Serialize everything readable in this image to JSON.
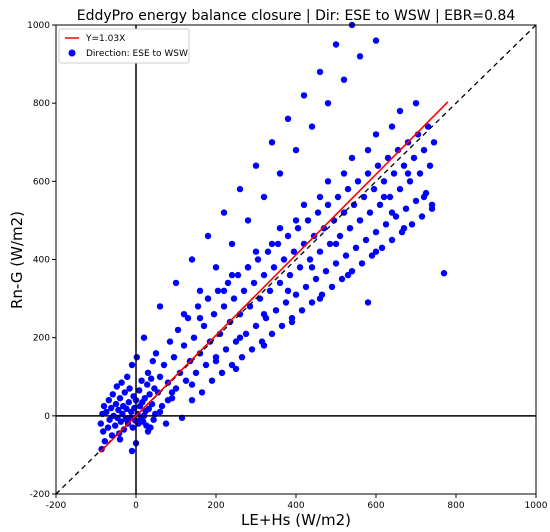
{
  "chart_data": {
    "type": "scatter",
    "title": "EddyPro energy balance closure | Dir: ESE to WSW | EBR=0.84",
    "xlabel": "LE+Hs (W/m2)",
    "ylabel": "Rn-G (W/m2)",
    "xlim": [
      -200,
      1000
    ],
    "ylim": [
      -200,
      1000
    ],
    "xticks": [
      -200,
      0,
      200,
      400,
      600,
      800,
      1000
    ],
    "yticks": [
      -200,
      0,
      200,
      400,
      600,
      800,
      1000
    ],
    "grid": false,
    "legend_position": "top-left",
    "reference_lines": [
      {
        "kind": "vertical",
        "x": 0,
        "color": "#000000"
      },
      {
        "kind": "horizontal",
        "y": 0,
        "color": "#000000"
      },
      {
        "kind": "one-to-one",
        "style": "dashed",
        "color": "#000000"
      }
    ],
    "fit": {
      "label": "Y=1.03X",
      "slope": 1.03,
      "x_range": [
        -90,
        780
      ],
      "color": "#ff0000"
    },
    "series": [
      {
        "name": "Direction: ESE to WSW",
        "color": "#0000ff",
        "points": [
          [
            -86,
            -85
          ],
          [
            -82,
            -40
          ],
          [
            -88,
            -20
          ],
          [
            -84,
            5
          ],
          [
            -80,
            25
          ],
          [
            -78,
            -65
          ],
          [
            -74,
            10
          ],
          [
            -70,
            -30
          ],
          [
            -68,
            40
          ],
          [
            -66,
            -10
          ],
          [
            -62,
            20
          ],
          [
            -60,
            -50
          ],
          [
            -58,
            55
          ],
          [
            -56,
            0
          ],
          [
            -52,
            -25
          ],
          [
            -50,
            30
          ],
          [
            -48,
            75
          ],
          [
            -46,
            -5
          ],
          [
            -44,
            15
          ],
          [
            -42,
            -45
          ],
          [
            -40,
            45
          ],
          [
            -38,
            -15
          ],
          [
            -36,
            85
          ],
          [
            -34,
            5
          ],
          [
            -32,
            25
          ],
          [
            -30,
            -35
          ],
          [
            -28,
            60
          ],
          [
            -26,
            -8
          ],
          [
            -24,
            18
          ],
          [
            -22,
            100
          ],
          [
            -20,
            -20
          ],
          [
            -18,
            35
          ],
          [
            -16,
            70
          ],
          [
            -14,
            -5
          ],
          [
            -12,
            10
          ],
          [
            -10,
            130
          ],
          [
            -8,
            -30
          ],
          [
            -6,
            50
          ],
          [
            -4,
            20
          ],
          [
            -2,
            -12
          ],
          [
            0,
            40
          ],
          [
            2,
            150
          ],
          [
            4,
            5
          ],
          [
            6,
            -20
          ],
          [
            8,
            65
          ],
          [
            10,
            25
          ],
          [
            12,
            -8
          ],
          [
            14,
            90
          ],
          [
            16,
            35
          ],
          [
            18,
            -15
          ],
          [
            20,
            200
          ],
          [
            22,
            45
          ],
          [
            24,
            12
          ],
          [
            26,
            -25
          ],
          [
            28,
            80
          ],
          [
            30,
            110
          ],
          [
            32,
            18
          ],
          [
            34,
            55
          ],
          [
            36,
            -30
          ],
          [
            38,
            95
          ],
          [
            40,
            30
          ],
          [
            42,
            140
          ],
          [
            44,
            -10
          ],
          [
            46,
            70
          ],
          [
            48,
            5
          ],
          [
            50,
            160
          ],
          [
            55,
            60
          ],
          [
            60,
            100
          ],
          [
            65,
            25
          ],
          [
            70,
            130
          ],
          [
            75,
            -20
          ],
          [
            80,
            85
          ],
          [
            85,
            190
          ],
          [
            90,
            45
          ],
          [
            95,
            150
          ],
          [
            100,
            70
          ],
          [
            105,
            220
          ],
          [
            110,
            110
          ],
          [
            115,
            -5
          ],
          [
            120,
            180
          ],
          [
            125,
            90
          ],
          [
            130,
            250
          ],
          [
            135,
            140
          ],
          [
            140,
            40
          ],
          [
            145,
            200
          ],
          [
            150,
            110
          ],
          [
            155,
            280
          ],
          [
            160,
            160
          ],
          [
            165,
            60
          ],
          [
            170,
            230
          ],
          [
            175,
            130
          ],
          [
            180,
            300
          ],
          [
            185,
            190
          ],
          [
            190,
            90
          ],
          [
            195,
            260
          ],
          [
            200,
            150
          ],
          [
            205,
            320
          ],
          [
            210,
            210
          ],
          [
            215,
            110
          ],
          [
            220,
            280
          ],
          [
            225,
            170
          ],
          [
            230,
            340
          ],
          [
            235,
            240
          ],
          [
            240,
            130
          ],
          [
            245,
            300
          ],
          [
            250,
            190
          ],
          [
            255,
            360
          ],
          [
            260,
            260
          ],
          [
            265,
            150
          ],
          [
            270,
            320
          ],
          [
            275,
            210
          ],
          [
            280,
            380
          ],
          [
            285,
            280
          ],
          [
            290,
            170
          ],
          [
            295,
            340
          ],
          [
            300,
            230
          ],
          [
            305,
            400
          ],
          [
            310,
            300
          ],
          [
            315,
            190
          ],
          [
            320,
            360
          ],
          [
            325,
            250
          ],
          [
            330,
            420
          ],
          [
            335,
            320
          ],
          [
            340,
            210
          ],
          [
            345,
            380
          ],
          [
            350,
            270
          ],
          [
            355,
            440
          ],
          [
            360,
            340
          ],
          [
            365,
            230
          ],
          [
            370,
            400
          ],
          [
            375,
            290
          ],
          [
            380,
            460
          ],
          [
            385,
            360
          ],
          [
            390,
            250
          ],
          [
            395,
            420
          ],
          [
            400,
            310
          ],
          [
            405,
            480
          ],
          [
            410,
            380
          ],
          [
            415,
            270
          ],
          [
            420,
            440
          ],
          [
            425,
            330
          ],
          [
            430,
            500
          ],
          [
            435,
            400
          ],
          [
            440,
            290
          ],
          [
            445,
            460
          ],
          [
            450,
            350
          ],
          [
            455,
            520
          ],
          [
            460,
            420
          ],
          [
            465,
            310
          ],
          [
            470,
            480
          ],
          [
            475,
            370
          ],
          [
            480,
            540
          ],
          [
            485,
            440
          ],
          [
            490,
            330
          ],
          [
            495,
            500
          ],
          [
            500,
            390
          ],
          [
            505,
            560
          ],
          [
            510,
            460
          ],
          [
            515,
            350
          ],
          [
            520,
            520
          ],
          [
            525,
            410
          ],
          [
            530,
            580
          ],
          [
            535,
            480
          ],
          [
            540,
            370
          ],
          [
            545,
            540
          ],
          [
            550,
            430
          ],
          [
            555,
            600
          ],
          [
            560,
            500
          ],
          [
            565,
            390
          ],
          [
            570,
            560
          ],
          [
            575,
            450
          ],
          [
            580,
            620
          ],
          [
            585,
            520
          ],
          [
            590,
            410
          ],
          [
            595,
            580
          ],
          [
            600,
            470
          ],
          [
            605,
            640
          ],
          [
            610,
            540
          ],
          [
            615,
            430
          ],
          [
            620,
            600
          ],
          [
            625,
            490
          ],
          [
            630,
            660
          ],
          [
            635,
            560
          ],
          [
            640,
            450
          ],
          [
            645,
            620
          ],
          [
            650,
            510
          ],
          [
            655,
            680
          ],
          [
            660,
            580
          ],
          [
            665,
            470
          ],
          [
            670,
            640
          ],
          [
            675,
            530
          ],
          [
            680,
            700
          ],
          [
            685,
            600
          ],
          [
            690,
            490
          ],
          [
            695,
            660
          ],
          [
            700,
            550
          ],
          [
            705,
            720
          ],
          [
            710,
            620
          ],
          [
            715,
            510
          ],
          [
            720,
            680
          ],
          [
            725,
            570
          ],
          [
            730,
            740
          ],
          [
            735,
            640
          ],
          [
            740,
            530
          ],
          [
            745,
            700
          ],
          [
            160,
            320
          ],
          [
            200,
            380
          ],
          [
            240,
            440
          ],
          [
            280,
            500
          ],
          [
            320,
            560
          ],
          [
            360,
            620
          ],
          [
            400,
            680
          ],
          [
            440,
            740
          ],
          [
            480,
            800
          ],
          [
            520,
            860
          ],
          [
            560,
            920
          ],
          [
            600,
            960
          ],
          [
            540,
            1000
          ],
          [
            500,
            950
          ],
          [
            460,
            880
          ],
          [
            420,
            820
          ],
          [
            380,
            760
          ],
          [
            340,
            700
          ],
          [
            300,
            640
          ],
          [
            260,
            580
          ],
          [
            220,
            520
          ],
          [
            180,
            460
          ],
          [
            140,
            400
          ],
          [
            100,
            340
          ],
          [
            60,
            280
          ],
          [
            120,
            260
          ],
          [
            180,
            300
          ],
          [
            240,
            360
          ],
          [
            300,
            420
          ],
          [
            360,
            480
          ],
          [
            420,
            540
          ],
          [
            480,
            600
          ],
          [
            540,
            660
          ],
          [
            600,
            720
          ],
          [
            660,
            780
          ],
          [
            700,
            800
          ],
          [
            640,
            740
          ],
          [
            580,
            680
          ],
          [
            520,
            620
          ],
          [
            460,
            560
          ],
          [
            400,
            500
          ],
          [
            340,
            440
          ],
          [
            280,
            380
          ],
          [
            220,
            320
          ],
          [
            160,
            250
          ],
          [
            250,
            120
          ],
          [
            320,
            180
          ],
          [
            390,
            240
          ],
          [
            460,
            300
          ],
          [
            530,
            360
          ],
          [
            600,
            420
          ],
          [
            670,
            480
          ],
          [
            740,
            540
          ],
          [
            580,
            290
          ],
          [
            770,
            365
          ],
          [
            640,
            520
          ],
          [
            720,
            560
          ],
          [
            680,
            620
          ],
          [
            620,
            560
          ],
          [
            560,
            500
          ],
          [
            500,
            440
          ],
          [
            440,
            380
          ],
          [
            380,
            320
          ],
          [
            320,
            260
          ],
          [
            260,
            200
          ],
          [
            200,
            140
          ],
          [
            140,
            80
          ],
          [
            80,
            40
          ],
          [
            20,
            0
          ],
          [
            -40,
            -60
          ],
          [
            0,
            -70
          ],
          [
            -10,
            -90
          ],
          [
            30,
            -40
          ],
          [
            60,
            10
          ],
          [
            90,
            60
          ]
        ]
      }
    ]
  }
}
